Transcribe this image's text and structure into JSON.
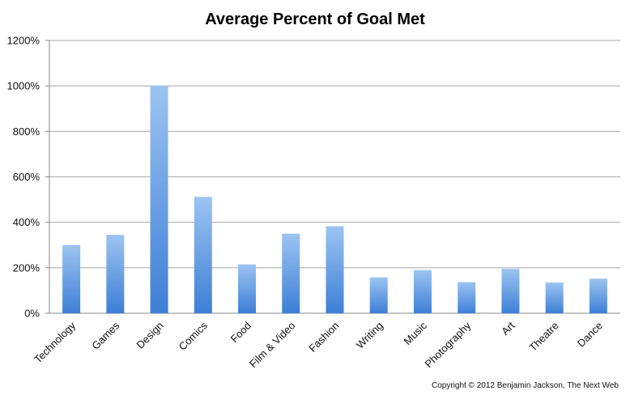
{
  "chart_data": {
    "type": "bar",
    "title": "Average Percent of Goal Met",
    "xlabel": "",
    "ylabel": "",
    "categories": [
      "Technology",
      "Games",
      "Design",
      "Comics",
      "Food",
      "Film & Video",
      "Fashion",
      "Writing",
      "Music",
      "Photography",
      "Art",
      "Theatre",
      "Dance"
    ],
    "values": [
      300,
      345,
      1000,
      512,
      215,
      350,
      383,
      158,
      190,
      137,
      195,
      135,
      152
    ],
    "ylim": [
      0,
      1200
    ],
    "yticks": [
      0,
      200,
      400,
      600,
      800,
      1000,
      1200
    ],
    "ytick_labels": [
      "0%",
      "200%",
      "400%",
      "600%",
      "800%",
      "1000%",
      "1200%"
    ],
    "grid": true,
    "legend": "none",
    "bar_color_top": "#9cc4f2",
    "bar_color_bottom": "#3d7fd6"
  },
  "credit": "Copyright © 2012 Benjamin Jackson, The Next Web"
}
